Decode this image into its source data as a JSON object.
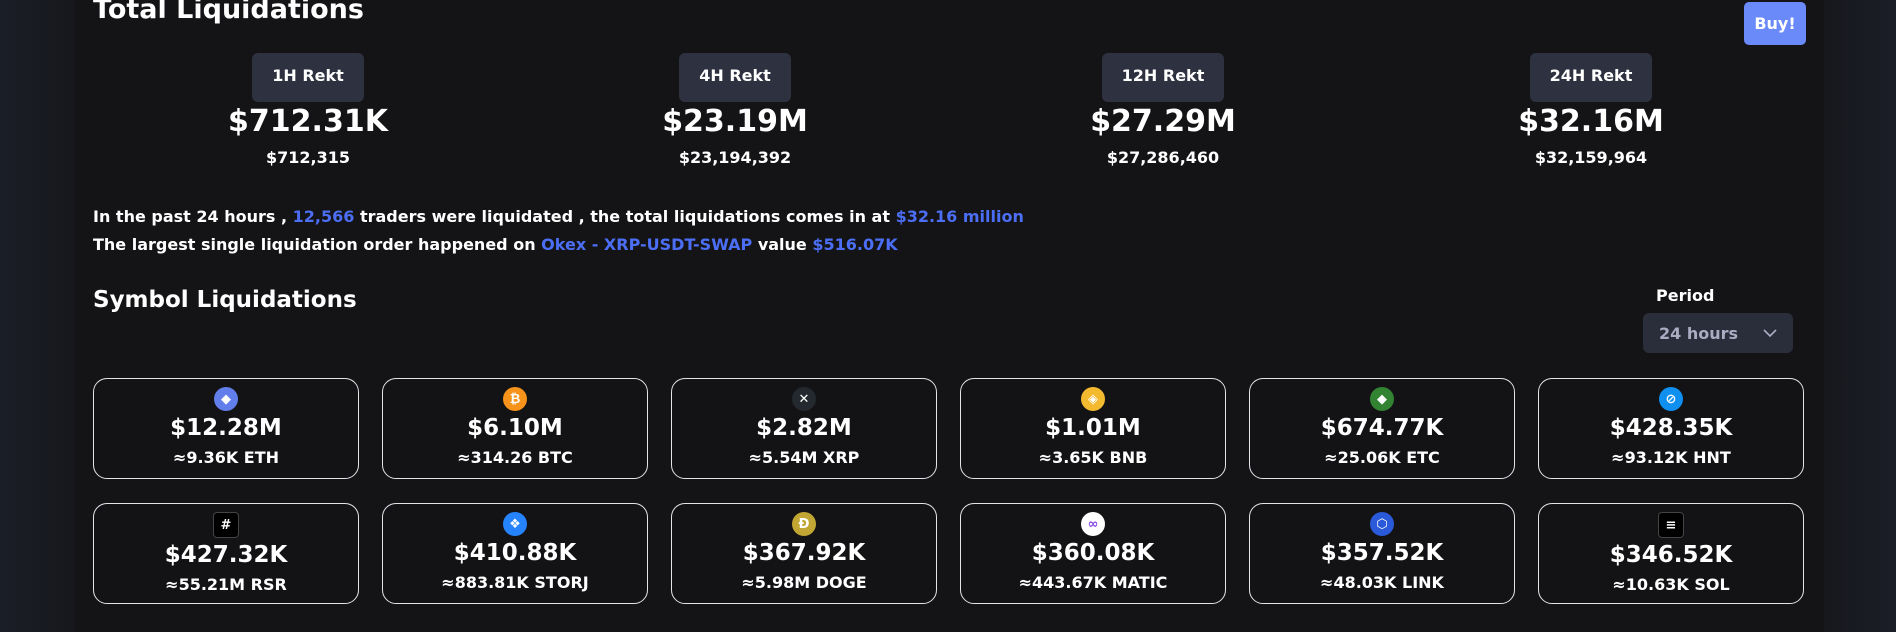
{
  "header": {
    "title": "Total Liquidations",
    "buy_label": "Buy!"
  },
  "stats": [
    {
      "label": "1H Rekt",
      "amount": "$712.31K",
      "exact": "$712,315"
    },
    {
      "label": "4H Rekt",
      "amount": "$23.19M",
      "exact": "$23,194,392"
    },
    {
      "label": "12H Rekt",
      "amount": "$27.29M",
      "exact": "$27,286,460"
    },
    {
      "label": "24H Rekt",
      "amount": "$32.16M",
      "exact": "$32,159,964"
    }
  ],
  "summary": {
    "line1_a": "In the past 24 hours ,",
    "traders": "12,566",
    "line1_b": "traders were liquidated , the total liquidations comes in at",
    "total": "$32.16 million",
    "line2_a": "The largest single liquidation order happened on",
    "order": "Okex - XRP-USDT-SWAP",
    "line2_b": "value",
    "value": "$516.07K"
  },
  "symbols": {
    "title": "Symbol Liquidations",
    "period_label": "Period",
    "period_value": "24 hours",
    "cards": [
      {
        "value": "$12.28M",
        "sub": "≈9.36K ETH",
        "icon": "eth-icon",
        "glyph": "◆",
        "color": "#627eea"
      },
      {
        "value": "$6.10M",
        "sub": "≈314.26 BTC",
        "icon": "btc-icon",
        "glyph": "₿",
        "color": "#f7931a"
      },
      {
        "value": "$2.82M",
        "sub": "≈5.54M XRP",
        "icon": "xrp-icon",
        "glyph": "✕",
        "color": "#23292f"
      },
      {
        "value": "$1.01M",
        "sub": "≈3.65K BNB",
        "icon": "bnb-icon",
        "glyph": "◈",
        "color": "#f3ba2f"
      },
      {
        "value": "$674.77K",
        "sub": "≈25.06K ETC",
        "icon": "etc-icon",
        "glyph": "◆",
        "color": "#328332"
      },
      {
        "value": "$428.35K",
        "sub": "≈93.12K HNT",
        "icon": "hnt-icon",
        "glyph": "⊘",
        "color": "#0f8ff0"
      },
      {
        "value": "$427.32K",
        "sub": "≈55.21M RSR",
        "icon": "rsr-icon",
        "glyph": "#",
        "color": "#000000"
      },
      {
        "value": "$410.88K",
        "sub": "≈883.81K STORJ",
        "icon": "storj-icon",
        "glyph": "❖",
        "color": "#2683ff"
      },
      {
        "value": "$367.92K",
        "sub": "≈5.98M DOGE",
        "icon": "doge-icon",
        "glyph": "Ð",
        "color": "#c2a633"
      },
      {
        "value": "$360.08K",
        "sub": "≈443.67K MATIC",
        "icon": "matic-icon",
        "glyph": "∞",
        "color": "#ffffff"
      },
      {
        "value": "$357.52K",
        "sub": "≈48.03K LINK",
        "icon": "link-icon",
        "glyph": "⬡",
        "color": "#2a5ada"
      },
      {
        "value": "$346.52K",
        "sub": "≈10.63K SOL",
        "icon": "sol-icon",
        "glyph": "≡",
        "color": "#000000"
      }
    ]
  }
}
